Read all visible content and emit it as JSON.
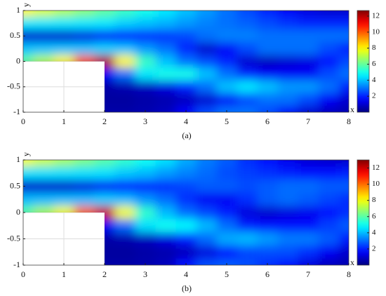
{
  "chart_data": [
    {
      "type": "heatmap",
      "caption": "(a)",
      "xlabel": "x",
      "ylabel": "y",
      "colormap": "jet",
      "grid": true,
      "x": [
        0,
        0.5,
        1,
        1.5,
        2,
        2.5,
        3,
        3.5,
        4,
        4.5,
        5,
        5.5,
        6,
        6.5,
        7,
        7.5,
        8
      ],
      "y": [
        1,
        0.75,
        0.5,
        0.25,
        0,
        -0.25,
        -0.5,
        -0.75,
        -1
      ],
      "z": [
        [
          8,
          7.5,
          7,
          6.5,
          6,
          5.5,
          5,
          4.5,
          4,
          3.5,
          3,
          2.5,
          2,
          1.5,
          1.2,
          1,
          1
        ],
        [
          4.5,
          4.5,
          4.5,
          4.5,
          4.5,
          4.2,
          4,
          3.8,
          3.5,
          3.2,
          3,
          2.8,
          2.5,
          2.2,
          2,
          2,
          2
        ],
        [
          1,
          1,
          1,
          1.2,
          1.5,
          1.8,
          2,
          2.2,
          2.5,
          3,
          3.2,
          3.2,
          3,
          3,
          3,
          3,
          3
        ],
        [
          4,
          4,
          4,
          4,
          4.2,
          4,
          3.5,
          3,
          2,
          1,
          1.5,
          2.5,
          3,
          3,
          3,
          2.5,
          2
        ],
        [
          6,
          7,
          8,
          10,
          12,
          8,
          5.5,
          4,
          3,
          2.5,
          2,
          1,
          0.8,
          1,
          1.2,
          1.8,
          2.5
        ],
        [
          null,
          null,
          null,
          null,
          1.5,
          3,
          4.5,
          5,
          5,
          4,
          3,
          2,
          1.5,
          1.5,
          1.5,
          2.5,
          3
        ],
        [
          null,
          null,
          null,
          null,
          0.5,
          0.6,
          0.8,
          1.2,
          2,
          3,
          4,
          4.5,
          4,
          3.5,
          3.5,
          3,
          2
        ],
        [
          null,
          null,
          null,
          null,
          0.4,
          0.4,
          0.5,
          0.6,
          0.8,
          1,
          1.5,
          2.5,
          3,
          3,
          2.5,
          1.5,
          1
        ],
        [
          null,
          null,
          null,
          null,
          0.5,
          0.5,
          0.6,
          0.8,
          1.5,
          2.5,
          3,
          3,
          2.5,
          1.5,
          1,
          0.8,
          0.6
        ]
      ],
      "xlim": [
        0,
        8
      ],
      "ylim": [
        -1,
        1
      ],
      "xticks": [
        0,
        1,
        2,
        3,
        4,
        5,
        6,
        7,
        8
      ],
      "yticks": [
        -1,
        -0.5,
        0,
        0.5,
        1
      ],
      "clim": [
        0,
        12.7
      ],
      "cticks": [
        2,
        4,
        6,
        8,
        10,
        12
      ]
    },
    {
      "type": "heatmap",
      "caption": "(b)",
      "xlabel": "x",
      "ylabel": "y",
      "colormap": "jet",
      "grid": true,
      "x": [
        0,
        0.5,
        1,
        1.5,
        2,
        2.5,
        3,
        3.5,
        4,
        4.5,
        5,
        5.5,
        6,
        6.5,
        7,
        7.5,
        8
      ],
      "y": [
        1,
        0.75,
        0.5,
        0.25,
        0,
        -0.25,
        -0.5,
        -0.75,
        -1
      ],
      "z": [
        [
          8,
          7.5,
          7,
          6.5,
          6,
          5.5,
          5,
          4.5,
          3.8,
          3.2,
          2.8,
          2.2,
          1.8,
          1.4,
          1.1,
          1,
          1
        ],
        [
          4.5,
          4.5,
          4.5,
          4.5,
          4.5,
          4.2,
          4,
          3.6,
          3.3,
          3,
          2.6,
          2.4,
          2.2,
          2,
          1.8,
          1.8,
          2
        ],
        [
          1,
          1,
          1,
          1.2,
          1.5,
          1.8,
          2,
          2.2,
          2.5,
          2.8,
          2.8,
          2.6,
          2.8,
          3,
          3,
          2.8,
          2.8
        ],
        [
          4,
          4,
          4,
          4,
          4.2,
          4,
          3.5,
          3,
          2.2,
          1.5,
          1.5,
          2.2,
          2.8,
          3,
          2.8,
          2.5,
          2.2
        ],
        [
          6,
          7,
          8,
          10,
          12,
          8,
          5.5,
          4,
          3,
          2.5,
          2,
          1.2,
          1,
          1.2,
          1.4,
          1.8,
          2.2
        ],
        [
          null,
          null,
          null,
          null,
          1.5,
          3,
          4.5,
          5,
          4.8,
          4,
          3,
          2,
          1.8,
          1.8,
          1.8,
          2.4,
          2.8
        ],
        [
          null,
          null,
          null,
          null,
          0.5,
          0.6,
          0.8,
          1.2,
          2,
          3,
          3.8,
          4,
          3.6,
          3.2,
          3.2,
          2.8,
          2
        ],
        [
          null,
          null,
          null,
          null,
          0.4,
          0.4,
          0.5,
          0.6,
          0.8,
          1.2,
          1.8,
          2.5,
          2.6,
          2.6,
          2.2,
          1.5,
          1
        ],
        [
          null,
          null,
          null,
          null,
          0.5,
          0.5,
          0.6,
          0.8,
          1.8,
          2.6,
          2.8,
          2.6,
          2.2,
          1.8,
          1.2,
          0.8,
          0.6
        ]
      ],
      "xlim": [
        0,
        8
      ],
      "ylim": [
        -1,
        1
      ],
      "xticks": [
        0,
        1,
        2,
        3,
        4,
        5,
        6,
        7,
        8
      ],
      "yticks": [
        -1,
        -0.5,
        0,
        0.5,
        1
      ],
      "clim": [
        0,
        13
      ],
      "cticks": [
        2,
        4,
        6,
        8,
        10,
        12
      ]
    }
  ]
}
